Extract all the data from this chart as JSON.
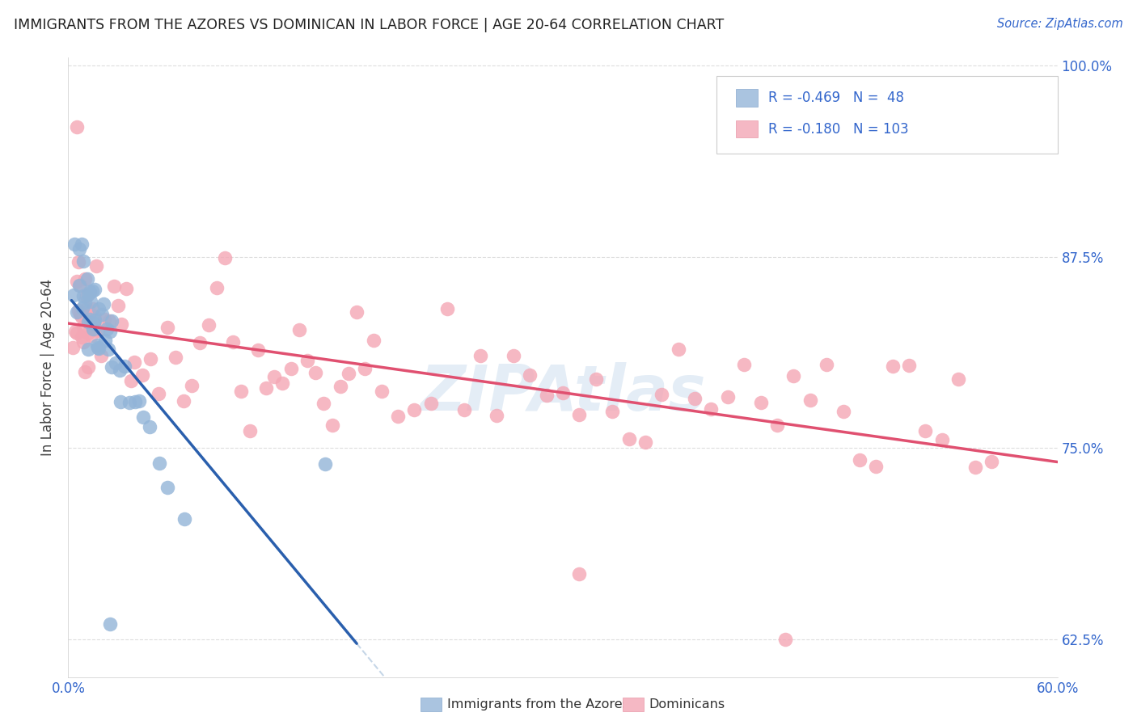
{
  "title": "IMMIGRANTS FROM THE AZORES VS DOMINICAN IN LABOR FORCE | AGE 20-64 CORRELATION CHART",
  "source": "Source: ZipAtlas.com",
  "ylabel": "In Labor Force | Age 20-64",
  "xlim": [
    0.0,
    0.6
  ],
  "ylim": [
    0.6,
    1.005
  ],
  "watermark": "ZIPAtlas",
  "blue_color": "#92b4d8",
  "pink_color": "#f4a7b5",
  "blue_line_color": "#2a5fad",
  "pink_line_color": "#e05070",
  "blue_dash_color": "#a0bcd8",
  "legend_text_color": "#3366cc",
  "title_color": "#222222",
  "axis_text_color": "#3366cc",
  "ylabel_color": "#444444",
  "grid_color": "#dddddd",
  "azores_x": [
    0.003,
    0.005,
    0.006,
    0.007,
    0.007,
    0.008,
    0.009,
    0.009,
    0.01,
    0.01,
    0.011,
    0.011,
    0.012,
    0.012,
    0.013,
    0.013,
    0.014,
    0.014,
    0.015,
    0.015,
    0.016,
    0.016,
    0.017,
    0.018,
    0.018,
    0.019,
    0.02,
    0.021,
    0.022,
    0.023,
    0.024,
    0.025,
    0.026,
    0.027,
    0.028,
    0.03,
    0.032,
    0.035,
    0.038,
    0.04,
    0.042,
    0.045,
    0.05,
    0.055,
    0.06,
    0.07,
    0.155,
    0.025
  ],
  "azores_y": [
    0.838,
    0.882,
    0.875,
    0.872,
    0.865,
    0.862,
    0.858,
    0.853,
    0.85,
    0.845,
    0.848,
    0.843,
    0.845,
    0.84,
    0.843,
    0.84,
    0.84,
    0.838,
    0.84,
    0.836,
    0.838,
    0.835,
    0.838,
    0.836,
    0.834,
    0.832,
    0.835,
    0.832,
    0.828,
    0.825,
    0.822,
    0.82,
    0.818,
    0.815,
    0.812,
    0.808,
    0.802,
    0.795,
    0.788,
    0.78,
    0.772,
    0.762,
    0.752,
    0.742,
    0.732,
    0.705,
    0.77,
    0.635
  ],
  "dominican_x": [
    0.003,
    0.004,
    0.005,
    0.005,
    0.006,
    0.006,
    0.007,
    0.007,
    0.008,
    0.008,
    0.009,
    0.009,
    0.01,
    0.01,
    0.011,
    0.011,
    0.012,
    0.012,
    0.013,
    0.014,
    0.015,
    0.016,
    0.017,
    0.018,
    0.02,
    0.022,
    0.025,
    0.028,
    0.03,
    0.032,
    0.035,
    0.038,
    0.04,
    0.045,
    0.05,
    0.055,
    0.06,
    0.065,
    0.07,
    0.075,
    0.08,
    0.085,
    0.09,
    0.095,
    0.1,
    0.105,
    0.11,
    0.115,
    0.12,
    0.125,
    0.13,
    0.135,
    0.14,
    0.145,
    0.15,
    0.155,
    0.16,
    0.165,
    0.17,
    0.175,
    0.18,
    0.185,
    0.19,
    0.2,
    0.21,
    0.22,
    0.23,
    0.24,
    0.25,
    0.26,
    0.27,
    0.28,
    0.29,
    0.3,
    0.31,
    0.32,
    0.33,
    0.34,
    0.35,
    0.36,
    0.37,
    0.38,
    0.39,
    0.4,
    0.41,
    0.42,
    0.43,
    0.44,
    0.45,
    0.46,
    0.47,
    0.48,
    0.49,
    0.5,
    0.51,
    0.52,
    0.53,
    0.54,
    0.55,
    0.56,
    0.005,
    0.31,
    0.435
  ],
  "dominican_y": [
    0.845,
    0.848,
    0.85,
    0.845,
    0.848,
    0.843,
    0.845,
    0.84,
    0.843,
    0.84,
    0.84,
    0.837,
    0.842,
    0.838,
    0.84,
    0.836,
    0.838,
    0.835,
    0.837,
    0.835,
    0.836,
    0.835,
    0.834,
    0.832,
    0.833,
    0.83,
    0.828,
    0.826,
    0.825,
    0.823,
    0.822,
    0.82,
    0.82,
    0.818,
    0.817,
    0.816,
    0.815,
    0.814,
    0.813,
    0.813,
    0.812,
    0.812,
    0.811,
    0.81,
    0.81,
    0.809,
    0.808,
    0.808,
    0.807,
    0.806,
    0.806,
    0.805,
    0.804,
    0.804,
    0.803,
    0.802,
    0.802,
    0.801,
    0.8,
    0.8,
    0.799,
    0.799,
    0.798,
    0.797,
    0.796,
    0.795,
    0.794,
    0.793,
    0.792,
    0.791,
    0.79,
    0.789,
    0.788,
    0.787,
    0.786,
    0.785,
    0.784,
    0.783,
    0.782,
    0.781,
    0.78,
    0.779,
    0.778,
    0.777,
    0.776,
    0.775,
    0.774,
    0.773,
    0.772,
    0.771,
    0.77,
    0.769,
    0.768,
    0.767,
    0.766,
    0.765,
    0.764,
    0.763,
    0.762,
    0.761,
    0.96,
    0.668,
    0.625
  ]
}
